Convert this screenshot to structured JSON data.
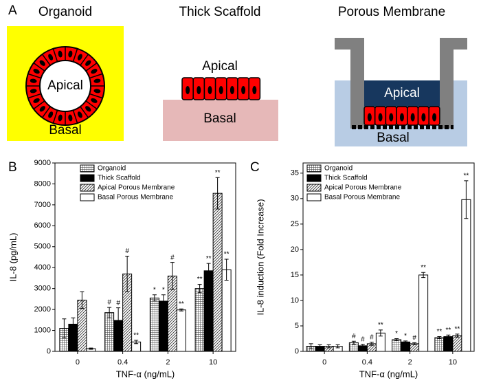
{
  "panels": [
    "A",
    "B",
    "C"
  ],
  "diagram": {
    "organoid": {
      "title": "Organoid",
      "inner": "Apical",
      "outer": "Basal"
    },
    "thick": {
      "title": "Thick Scaffold",
      "top": "Apical",
      "bottom": "Basal"
    },
    "porous": {
      "title": "Porous Membrane",
      "top": "Apical",
      "bottom": "Basal"
    }
  },
  "chart_data": [
    {
      "type": "bar",
      "xlabel": "TNF-α (ng/mL)",
      "ylabel": "IL-8 (pg/mL)",
      "categories": [
        "0",
        "0.4",
        "2",
        "10"
      ],
      "ylim": [
        0,
        9000
      ],
      "yticks": [
        0,
        1000,
        2000,
        3000,
        4000,
        5000,
        6000,
        7000,
        8000,
        9000
      ],
      "series": [
        {
          "name": "Organoid",
          "color": "#000000",
          "pattern": "grid",
          "values": [
            1100,
            1850,
            2550,
            3000
          ],
          "errors": [
            450,
            250,
            150,
            200
          ],
          "annotations": [
            null,
            "#",
            "*",
            "**"
          ]
        },
        {
          "name": "Thick Scaffold",
          "color": "#000000",
          "pattern": "solid",
          "values": [
            1300,
            1480,
            2400,
            3850
          ],
          "errors": [
            300,
            600,
            300,
            350
          ],
          "annotations": [
            null,
            "#",
            "*",
            "**"
          ]
        },
        {
          "name": "Apical Porous Membrane",
          "color": "#000000",
          "pattern": "diagonal",
          "values": [
            2450,
            3700,
            3600,
            7550
          ],
          "errors": [
            400,
            850,
            650,
            750
          ],
          "annotations": [
            null,
            "#",
            "#",
            "**"
          ]
        },
        {
          "name": "Basal Porous Membrane",
          "color": "#000000",
          "pattern": "none",
          "values": [
            130,
            450,
            1980,
            3900
          ],
          "errors": [
            30,
            80,
            50,
            500
          ],
          "annotations": [
            null,
            "**",
            "**",
            "**"
          ]
        }
      ]
    },
    {
      "type": "bar",
      "xlabel": "TNF-α (ng/mL)",
      "ylabel": "IL-8 induction (Fold Increase)",
      "categories": [
        "0",
        "0.4",
        "2",
        "10"
      ],
      "ylim": [
        0,
        37
      ],
      "yticks": [
        0,
        5,
        10,
        15,
        20,
        25,
        30,
        35
      ],
      "series": [
        {
          "name": "Organoid",
          "color": "#000000",
          "pattern": "grid",
          "values": [
            1,
            1.7,
            2.3,
            2.7
          ],
          "errors": [
            0.5,
            0.3,
            0.2,
            0.2
          ],
          "annotations": [
            null,
            "#",
            "*",
            "**"
          ]
        },
        {
          "name": "Thick Scaffold",
          "color": "#000000",
          "pattern": "solid",
          "values": [
            1,
            1.1,
            1.85,
            2.9
          ],
          "errors": [
            0.3,
            0.3,
            0.2,
            0.3
          ],
          "annotations": [
            null,
            "#",
            "*",
            "**"
          ]
        },
        {
          "name": "Apical Porous Membrane",
          "color": "#000000",
          "pattern": "diagonal",
          "values": [
            1,
            1.5,
            1.5,
            3.1
          ],
          "errors": [
            0.3,
            0.3,
            0.2,
            0.3
          ],
          "annotations": [
            null,
            "#",
            "#",
            "**"
          ]
        },
        {
          "name": "Basal Porous Membrane",
          "color": "#000000",
          "pattern": "none",
          "values": [
            1,
            3.6,
            15,
            29.8
          ],
          "errors": [
            0.3,
            0.6,
            0.5,
            3.7
          ],
          "annotations": [
            null,
            "**",
            "**",
            "**"
          ]
        }
      ]
    }
  ]
}
